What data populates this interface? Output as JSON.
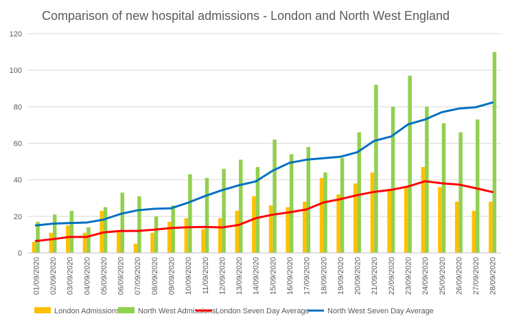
{
  "chart_data": {
    "type": "bar",
    "title": "Comparison of new hospital admissions - London and North West England",
    "xlabel": "",
    "ylabel": "",
    "ylim": [
      0,
      120
    ],
    "yticks": [
      0,
      20,
      40,
      60,
      80,
      100,
      120
    ],
    "grid": true,
    "legend_position": "bottom",
    "categories": [
      "01/09/2020",
      "02/09/2020",
      "03/09/2020",
      "04/09/2020",
      "05/09/2020",
      "06/09/2020",
      "07/09/2020",
      "08/09/2020",
      "09/09/2020",
      "10/09/2020",
      "11/09/2020",
      "12/09/2020",
      "13/09/2020",
      "14/09/2020",
      "15/09/2020",
      "16/09/2020",
      "17/09/2020",
      "18/09/2020",
      "19/09/2020",
      "20/09/2020",
      "21/09/2020",
      "22/09/2020",
      "23/09/2020",
      "24/09/2020",
      "25/09/2020",
      "26/09/2020",
      "27/09/2020",
      "28/09/2020"
    ],
    "series": [
      {
        "name": "London Admissions",
        "kind": "bar",
        "color": "#FFC000",
        "values": [
          6,
          11,
          15,
          11,
          23,
          12,
          5,
          11,
          17,
          19,
          13,
          19,
          23,
          31,
          26,
          25,
          28,
          41,
          32,
          38,
          44,
          35,
          36,
          47,
          36,
          28,
          23,
          28
        ]
      },
      {
        "name": "North West Admissions",
        "kind": "bar",
        "color": "#92D050",
        "values": [
          17,
          21,
          23,
          14,
          25,
          33,
          31,
          20,
          26,
          43,
          41,
          46,
          51,
          47,
          62,
          54,
          58,
          44,
          52,
          66,
          92,
          80,
          97,
          80,
          71,
          66,
          73,
          110
        ]
      },
      {
        "name": "London Seven Day Average",
        "kind": "line",
        "color": "#FF0000",
        "values": [
          6.5,
          7.5,
          8.7,
          8.7,
          11.2,
          12,
          12,
          12.7,
          13.6,
          14,
          14.2,
          13.9,
          15.3,
          19,
          20.9,
          22.2,
          23.8,
          27.6,
          29.4,
          31.6,
          33.4,
          34.5,
          36.3,
          39.2,
          38.1,
          37.4,
          35.4,
          33.3
        ]
      },
      {
        "name": "North West Seven Day Average",
        "kind": "line",
        "color": "#0070C0",
        "values": [
          15,
          16,
          16.3,
          16.6,
          18.2,
          21.3,
          23.3,
          24.1,
          24.4,
          27.5,
          31.1,
          34.3,
          37,
          39.1,
          45,
          49.3,
          51,
          51.8,
          52.6,
          55.1,
          61.3,
          63.7,
          70.3,
          73,
          77,
          79,
          79.7,
          82.3
        ]
      }
    ]
  }
}
